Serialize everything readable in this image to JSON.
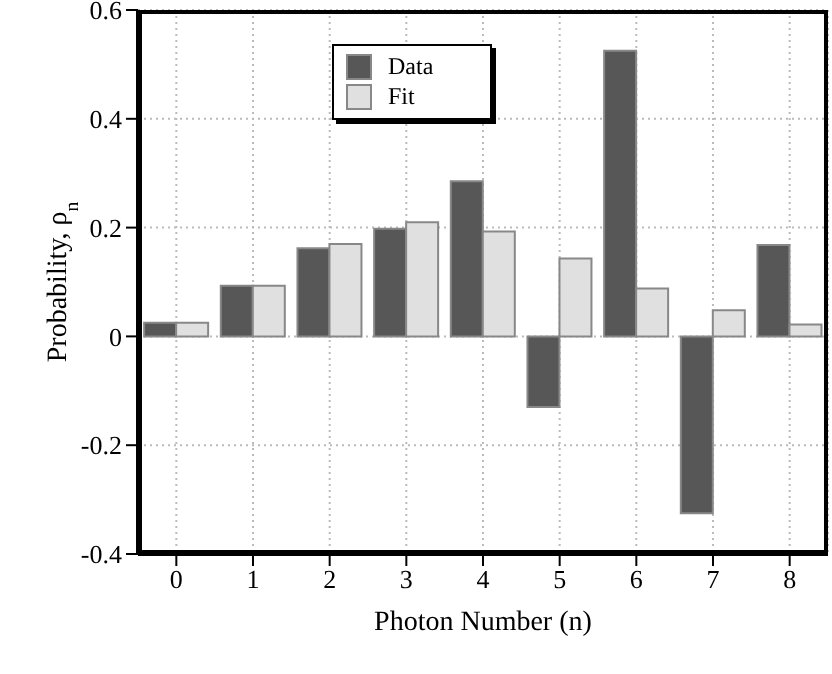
{
  "chart_data": {
    "type": "bar",
    "xlabel": "Photon Number (n)",
    "ylabel": "Probability, ρ$_{n}$",
    "categories": [
      "0",
      "1",
      "2",
      "3",
      "4",
      "5",
      "6",
      "7",
      "8"
    ],
    "series": [
      {
        "name": "Data",
        "color": "#575757",
        "values": [
          0.025,
          0.093,
          0.162,
          0.198,
          0.285,
          -0.13,
          0.525,
          -0.325,
          0.168
        ]
      },
      {
        "name": "Fit",
        "color": "#e0e0e0",
        "values": [
          0.025,
          0.093,
          0.17,
          0.21,
          0.193,
          0.143,
          0.088,
          0.048,
          0.022
        ]
      }
    ],
    "ylim": [
      -0.4,
      0.6
    ],
    "yticks": [
      -0.4,
      -0.2,
      0,
      0.2,
      0.4,
      0.6
    ],
    "grid": true,
    "legend": "top"
  }
}
